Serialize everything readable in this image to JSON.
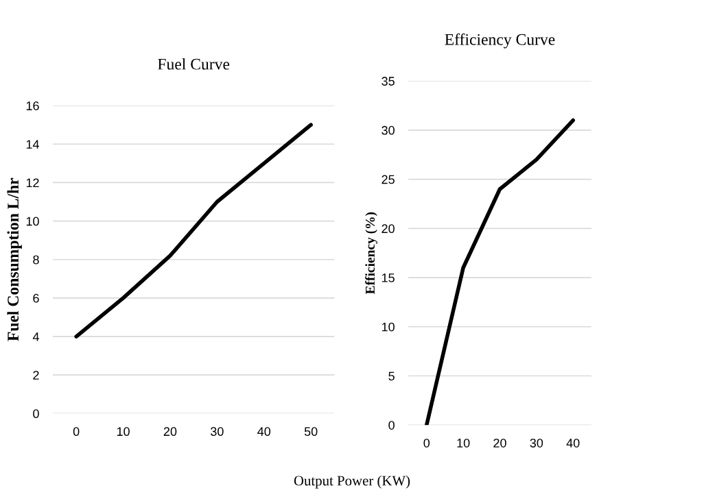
{
  "chart_data": [
    {
      "type": "line",
      "title": "Fuel Curve",
      "ylabel": "Fuel Consumption L/hr",
      "xlabel": "Output Power (KW)",
      "categories": [
        "0",
        "10",
        "20",
        "30",
        "40",
        "50"
      ],
      "series": [
        {
          "color": "#000000",
          "values": [
            4,
            6,
            8.2,
            11,
            13,
            15
          ]
        }
      ],
      "ylim": [
        0,
        16
      ],
      "yticks": [
        0,
        2,
        4,
        6,
        8,
        10,
        12,
        14,
        16
      ],
      "grid": "y",
      "marker": "none",
      "line_style": "solid"
    },
    {
      "type": "line",
      "title": "Efficiency Curve",
      "ylabel": "Efficiency (%)",
      "categories": [
        "0",
        "10",
        "20",
        "30",
        "40"
      ],
      "series": [
        {
          "color": "#000000",
          "values": [
            0,
            16,
            24,
            27,
            31
          ]
        }
      ],
      "ylim": [
        0,
        35
      ],
      "yticks": [
        0,
        5,
        10,
        15,
        20,
        25,
        30,
        35
      ],
      "grid": "y",
      "marker": "none",
      "line_style": "solid"
    }
  ]
}
